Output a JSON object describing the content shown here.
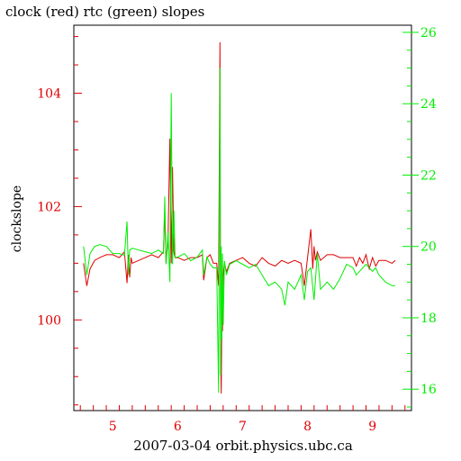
{
  "chart_data": {
    "type": "line",
    "title": "clock (red) rtc (green) slopes",
    "xlabel": "2007-03-04 orbit.physics.ubc.ca",
    "ylabel": "clockslope",
    "xlim": [
      4.4,
      9.6
    ],
    "x_ticks": [
      5,
      6,
      7,
      8,
      9
    ],
    "left_axis": {
      "ylim": [
        98.4,
        105.2
      ],
      "ticks": [
        100,
        102,
        104
      ],
      "color": "#dd0000"
    },
    "right_axis": {
      "ylim": [
        15.4,
        26.2
      ],
      "ticks": [
        16,
        18,
        20,
        22,
        24,
        26
      ],
      "color": "#00ee00"
    },
    "grid": false,
    "series": [
      {
        "axis": "left",
        "color": "#dd0000",
        "x": [
          4.55,
          4.6,
          4.65,
          4.72,
          4.8,
          4.9,
          5.0,
          5.1,
          5.18,
          5.22,
          5.24,
          5.26,
          5.28,
          5.3,
          5.4,
          5.5,
          5.6,
          5.7,
          5.78,
          5.8,
          5.82,
          5.85,
          5.88,
          5.9,
          5.92,
          5.94,
          5.96,
          6.0,
          6.1,
          6.2,
          6.3,
          6.38,
          6.4,
          6.45,
          6.5,
          6.55,
          6.6,
          6.63,
          6.65,
          6.66,
          6.67,
          6.68,
          6.69,
          6.7,
          6.72,
          6.75,
          6.8,
          6.9,
          7.0,
          7.1,
          7.2,
          7.3,
          7.4,
          7.5,
          7.6,
          7.7,
          7.8,
          7.9,
          7.95,
          8.0,
          8.05,
          8.08,
          8.1,
          8.12,
          8.15,
          8.2,
          8.3,
          8.4,
          8.5,
          8.6,
          8.7,
          8.75,
          8.8,
          8.85,
          8.9,
          8.95,
          9.0,
          9.05,
          9.1,
          9.2,
          9.3,
          9.35
        ],
        "values": [
          101.0,
          100.6,
          100.9,
          101.05,
          101.1,
          101.15,
          101.15,
          101.1,
          101.2,
          100.65,
          101.15,
          100.75,
          101.1,
          101.0,
          101.05,
          101.1,
          101.15,
          101.1,
          101.2,
          101.9,
          101.0,
          101.4,
          103.2,
          101.0,
          102.7,
          101.2,
          101.1,
          101.1,
          101.05,
          101.1,
          101.1,
          101.15,
          100.7,
          101.1,
          101.15,
          101.0,
          101.0,
          100.6,
          104.9,
          99.6,
          98.7,
          100.2,
          99.8,
          100.8,
          101.0,
          100.85,
          101.0,
          101.05,
          101.1,
          101.0,
          100.95,
          101.1,
          101.0,
          100.95,
          101.05,
          101.0,
          101.05,
          101.0,
          100.6,
          101.1,
          101.6,
          100.9,
          101.3,
          101.05,
          101.2,
          101.05,
          101.15,
          101.15,
          101.1,
          101.1,
          101.1,
          100.95,
          101.1,
          101.0,
          101.15,
          100.9,
          101.1,
          100.95,
          101.05,
          101.05,
          101.0,
          101.05
        ]
      },
      {
        "axis": "right",
        "color": "#00ee00",
        "x": [
          4.55,
          4.6,
          4.65,
          4.72,
          4.8,
          4.9,
          5.0,
          5.1,
          5.18,
          5.22,
          5.24,
          5.26,
          5.3,
          5.4,
          5.5,
          5.6,
          5.7,
          5.78,
          5.8,
          5.82,
          5.85,
          5.88,
          5.9,
          5.92,
          5.94,
          5.96,
          6.0,
          6.1,
          6.2,
          6.3,
          6.38,
          6.4,
          6.45,
          6.5,
          6.55,
          6.6,
          6.63,
          6.65,
          6.66,
          6.67,
          6.68,
          6.69,
          6.7,
          6.72,
          6.75,
          6.8,
          6.9,
          7.0,
          7.1,
          7.2,
          7.3,
          7.4,
          7.5,
          7.6,
          7.65,
          7.7,
          7.8,
          7.9,
          7.95,
          8.0,
          8.05,
          8.1,
          8.15,
          8.2,
          8.3,
          8.4,
          8.5,
          8.6,
          8.7,
          8.75,
          8.8,
          8.9,
          9.0,
          9.05,
          9.1,
          9.2,
          9.3,
          9.35
        ],
        "values": [
          20.0,
          19.2,
          19.8,
          20.0,
          20.05,
          20.0,
          19.8,
          19.8,
          19.75,
          20.7,
          19.2,
          19.9,
          19.95,
          19.9,
          19.85,
          19.8,
          19.9,
          19.8,
          21.4,
          19.5,
          20.4,
          19.0,
          24.3,
          19.5,
          21.0,
          19.7,
          19.7,
          19.8,
          19.6,
          19.7,
          19.9,
          19.2,
          19.7,
          19.5,
          19.4,
          19.4,
          15.9,
          25.0,
          16.4,
          20.0,
          17.4,
          19.8,
          17.8,
          19.6,
          19.2,
          19.5,
          19.6,
          19.5,
          19.4,
          19.5,
          19.2,
          18.9,
          19.0,
          18.8,
          18.35,
          19.0,
          18.8,
          19.2,
          18.5,
          19.3,
          19.4,
          18.5,
          19.8,
          18.8,
          19.0,
          18.8,
          19.1,
          19.5,
          19.4,
          19.2,
          19.3,
          19.5,
          19.3,
          19.4,
          19.2,
          19.0,
          18.9,
          18.9
        ]
      }
    ]
  }
}
